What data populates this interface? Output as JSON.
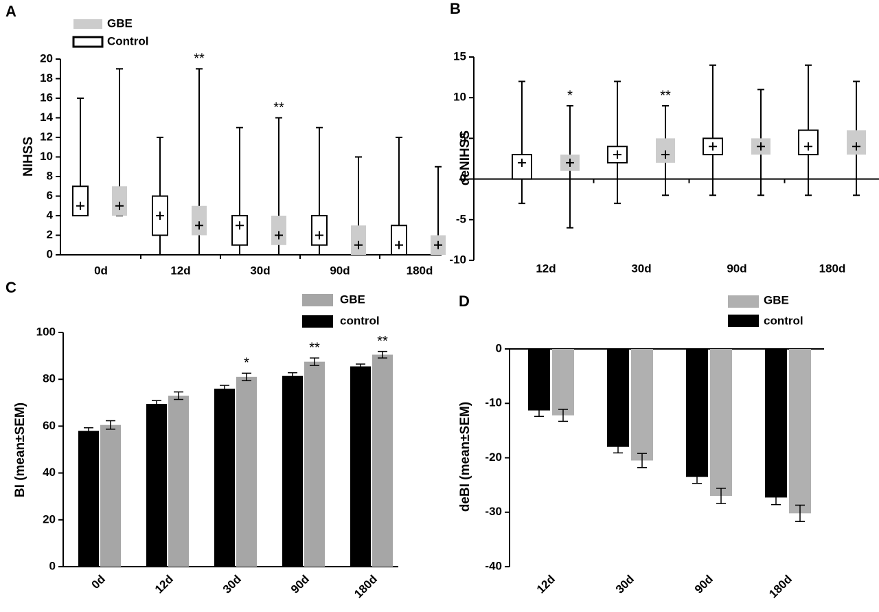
{
  "chart_data": [
    {
      "type": "box",
      "panel": "A",
      "ylabel": "NIHSS",
      "categories": [
        "0d",
        "12d",
        "30d",
        "90d",
        "180d"
      ],
      "ylim": [
        0,
        20
      ],
      "yticks": [
        0,
        2,
        4,
        6,
        8,
        10,
        12,
        14,
        16,
        18,
        20
      ],
      "legend": "top-left",
      "series": [
        {
          "name": "GBE",
          "color": "#cccccc",
          "values": [
            {
              "min": 4,
              "q1": 4,
              "q3": 7,
              "max": 19,
              "mean": 5
            },
            {
              "min": 0,
              "q1": 2,
              "q3": 5,
              "max": 19,
              "mean": 3
            },
            {
              "min": 0,
              "q1": 1,
              "q3": 4,
              "max": 14,
              "mean": 2
            },
            {
              "min": 0,
              "q1": 0,
              "q3": 3,
              "max": 10,
              "mean": 1
            },
            {
              "min": 0,
              "q1": 0,
              "q3": 2,
              "max": 9,
              "mean": 1
            }
          ],
          "labels": [
            null,
            "**",
            "**",
            null,
            null
          ]
        },
        {
          "name": "Control",
          "color": "#ffffff",
          "edgecolor": "#000000",
          "values": [
            {
              "min": 4,
              "q1": 4,
              "q3": 7,
              "max": 16,
              "mean": 5
            },
            {
              "min": 0,
              "q1": 2,
              "q3": 6,
              "max": 12,
              "mean": 4
            },
            {
              "min": 0,
              "q1": 1,
              "q3": 4,
              "max": 13,
              "mean": 3
            },
            {
              "min": 0,
              "q1": 1,
              "q3": 4,
              "max": 13,
              "mean": 2
            },
            {
              "min": 0,
              "q1": 0,
              "q3": 3,
              "max": 12,
              "mean": 1
            }
          ]
        }
      ]
    },
    {
      "type": "box",
      "panel": "B",
      "ylabel": "deNIHSS",
      "categories": [
        "12d",
        "30d",
        "90d",
        "180d"
      ],
      "ylim": [
        -10,
        15
      ],
      "yticks": [
        -10,
        -5,
        0,
        5,
        10,
        15
      ],
      "series": [
        {
          "color": "#cccccc",
          "values": [
            {
              "min": -6,
              "q1": 1,
              "q3": 3,
              "max": 9,
              "mean": 2
            },
            {
              "min": -2,
              "q1": 2,
              "q3": 5,
              "max": 9,
              "mean": 3
            },
            {
              "min": -2,
              "q1": 3,
              "q3": 5,
              "max": 11,
              "mean": 4
            },
            {
              "min": -2,
              "q1": 3,
              "q3": 6,
              "max": 12,
              "mean": 4
            }
          ],
          "labels": [
            "*",
            "**",
            null,
            null
          ]
        },
        {
          "color": "#ffffff",
          "edgecolor": "#000000",
          "values": [
            {
              "min": -3,
              "q1": 0,
              "q3": 3,
              "max": 12,
              "mean": 2
            },
            {
              "min": -3,
              "q1": 2,
              "q3": 4,
              "max": 12,
              "mean": 3
            },
            {
              "min": -2,
              "q1": 3,
              "q3": 5,
              "max": 14,
              "mean": 4
            },
            {
              "min": -2,
              "q1": 3,
              "q3": 6,
              "max": 14,
              "mean": 4
            }
          ]
        }
      ]
    },
    {
      "type": "bar",
      "panel": "C",
      "ylabel": "BI (mean±SEM)",
      "categories": [
        "0d",
        "12d",
        "30d",
        "90d",
        "180d"
      ],
      "ylim": [
        0,
        100
      ],
      "yticks": [
        0,
        20,
        40,
        60,
        80,
        100
      ],
      "legend": "top-right",
      "series": [
        {
          "name": "GBE",
          "color": "#a6a6a6",
          "values": [
            60.5,
            73,
            81,
            87.5,
            90.5
          ],
          "errors": [
            1.8,
            1.6,
            1.6,
            1.6,
            1.4
          ],
          "labels": [
            null,
            null,
            "*",
            "**",
            "**"
          ]
        },
        {
          "name": "control",
          "color": "#000000",
          "values": [
            58,
            69.5,
            76,
            81.5,
            85.5
          ],
          "errors": [
            1.3,
            1.4,
            1.4,
            1.3,
            1.0
          ]
        }
      ]
    },
    {
      "type": "bar",
      "panel": "D",
      "ylabel": "deBI  (mean±SEM)",
      "categories": [
        "12d",
        "30d",
        "90d",
        "180d"
      ],
      "ylim": [
        -40,
        0
      ],
      "yticks": [
        -40,
        -30,
        -20,
        -10,
        0
      ],
      "legend": "top-right",
      "series": [
        {
          "name": "GBE",
          "color": "#b0b0b0",
          "values": [
            -12.2,
            -20.5,
            -27,
            -30.2
          ],
          "errors": [
            1.1,
            1.3,
            1.4,
            1.5
          ]
        },
        {
          "name": "control",
          "color": "#000000",
          "values": [
            -11.3,
            -18,
            -23.5,
            -27.3
          ],
          "errors": [
            1.1,
            1.1,
            1.2,
            1.3
          ]
        }
      ]
    }
  ]
}
